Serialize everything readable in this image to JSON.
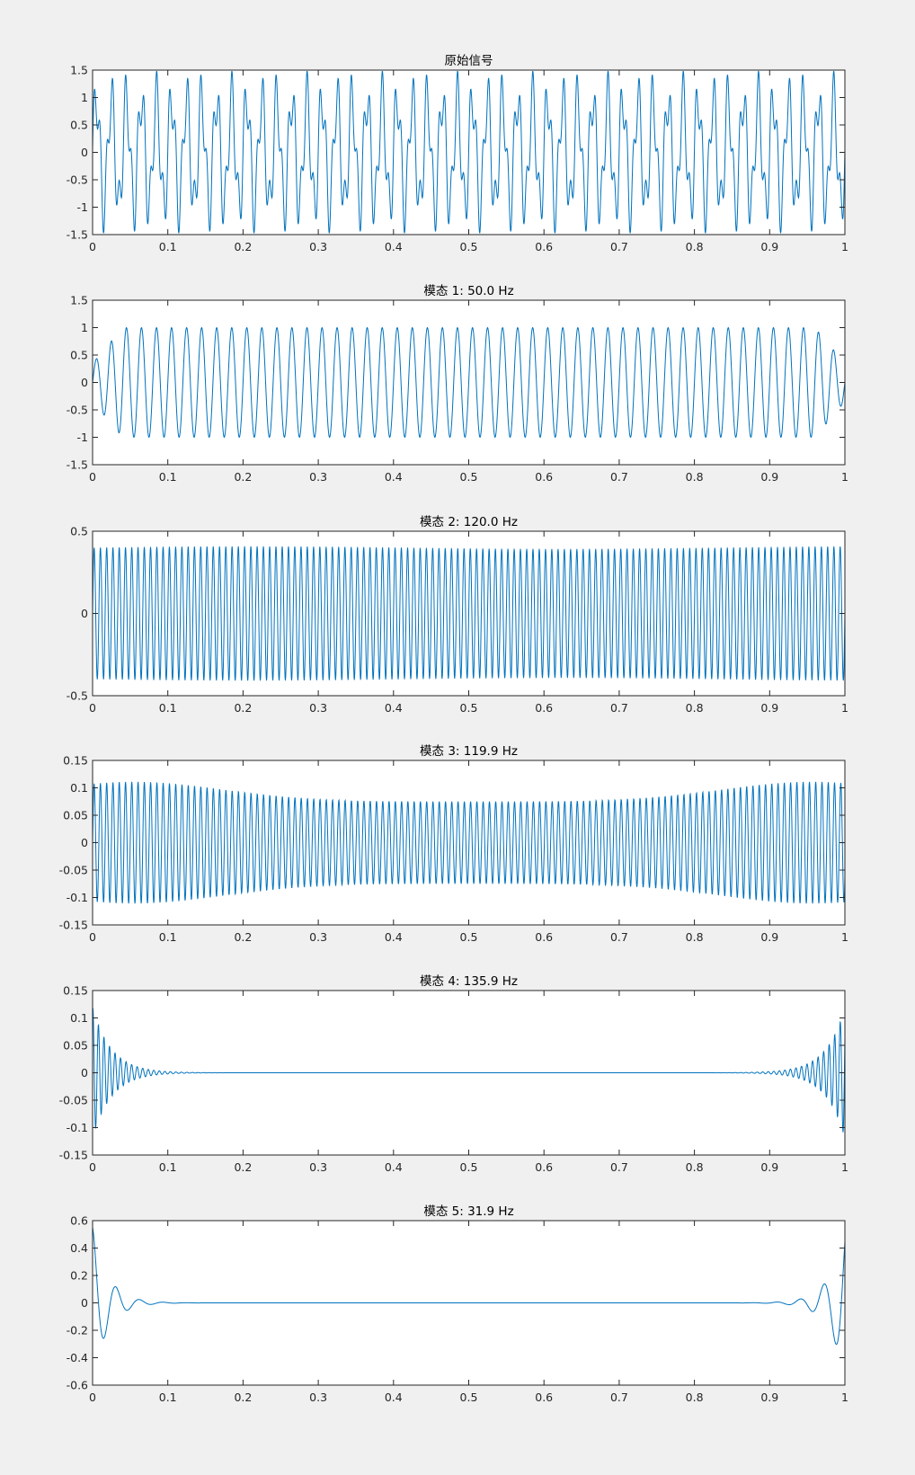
{
  "figure": {
    "background": "#f0f0f0",
    "line_color": "#0072bd"
  },
  "chart_data": [
    {
      "type": "line",
      "title": "原始信号",
      "xlim": [
        0,
        1
      ],
      "ylim": [
        -1.5,
        1.5
      ],
      "xticks": [
        0,
        0.1,
        0.2,
        0.3,
        0.4,
        0.5,
        0.6,
        0.7,
        0.8,
        0.9,
        1
      ],
      "xticklabels": [
        "0",
        "0.1",
        "0.2",
        "0.3",
        "0.4",
        "0.5",
        "0.6",
        "0.7",
        "0.8",
        "0.9",
        "1"
      ],
      "yticks": [
        -1.5,
        -1,
        -0.5,
        0,
        0.5,
        1,
        1.5
      ],
      "yticklabels": [
        "-1.5",
        "-1",
        "-0.5",
        "0",
        "0.5",
        "1",
        "1.5"
      ],
      "series": [
        {
          "components": [
            {
              "amp": 1.0,
              "freq": 50
            },
            {
              "amp": 0.4,
              "freq": 120
            },
            {
              "amp": 0.1,
              "freq": 120
            }
          ]
        }
      ]
    },
    {
      "type": "line",
      "title": "模态 1: 50.0 Hz",
      "xlim": [
        0,
        1
      ],
      "ylim": [
        -1.5,
        1.5
      ],
      "xticks": [
        0,
        0.1,
        0.2,
        0.3,
        0.4,
        0.5,
        0.6,
        0.7,
        0.8,
        0.9,
        1
      ],
      "xticklabels": [
        "0",
        "0.1",
        "0.2",
        "0.3",
        "0.4",
        "0.5",
        "0.6",
        "0.7",
        "0.8",
        "0.9",
        "1"
      ],
      "yticks": [
        -1.5,
        -1,
        -0.5,
        0,
        0.5,
        1,
        1.5
      ],
      "yticklabels": [
        "-1.5",
        "-1",
        "-0.5",
        "0",
        "0.5",
        "1",
        "1.5"
      ],
      "series": [
        {
          "freq": 50.0,
          "amplitude": 1.0
        }
      ]
    },
    {
      "type": "line",
      "title": "模态 2: 120.0 Hz",
      "xlim": [
        0,
        1
      ],
      "ylim": [
        -0.5,
        0.5
      ],
      "xticks": [
        0,
        0.1,
        0.2,
        0.3,
        0.4,
        0.5,
        0.6,
        0.7,
        0.8,
        0.9,
        1
      ],
      "xticklabels": [
        "0",
        "0.1",
        "0.2",
        "0.3",
        "0.4",
        "0.5",
        "0.6",
        "0.7",
        "0.8",
        "0.9",
        "1"
      ],
      "yticks": [
        -0.5,
        0,
        0.5
      ],
      "yticklabels": [
        "-0.5",
        "0",
        "0.5"
      ],
      "series": [
        {
          "freq": 120.0,
          "amplitude": 0.4
        }
      ]
    },
    {
      "type": "line",
      "title": "模态 3: 119.9 Hz",
      "xlim": [
        0,
        1
      ],
      "ylim": [
        -0.15,
        0.15
      ],
      "xticks": [
        0,
        0.1,
        0.2,
        0.3,
        0.4,
        0.5,
        0.6,
        0.7,
        0.8,
        0.9,
        1
      ],
      "xticklabels": [
        "0",
        "0.1",
        "0.2",
        "0.3",
        "0.4",
        "0.5",
        "0.6",
        "0.7",
        "0.8",
        "0.9",
        "1"
      ],
      "yticks": [
        -0.15,
        -0.1,
        -0.05,
        0,
        0.05,
        0.1,
        0.15
      ],
      "yticklabels": [
        "-0.15",
        "-0.1",
        "-0.05",
        "0",
        "0.05",
        "0.1",
        "0.15"
      ],
      "series": [
        {
          "freq": 119.9,
          "amplitude_edges": 0.11,
          "amplitude_center": 0.075
        }
      ]
    },
    {
      "type": "line",
      "title": "模态 4: 135.9 Hz",
      "xlim": [
        0,
        1
      ],
      "ylim": [
        -0.15,
        0.15
      ],
      "xticks": [
        0,
        0.1,
        0.2,
        0.3,
        0.4,
        0.5,
        0.6,
        0.7,
        0.8,
        0.9,
        1
      ],
      "xticklabels": [
        "0",
        "0.1",
        "0.2",
        "0.3",
        "0.4",
        "0.5",
        "0.6",
        "0.7",
        "0.8",
        "0.9",
        "1"
      ],
      "yticks": [
        -0.15,
        -0.1,
        -0.05,
        0,
        0.05,
        0.1,
        0.15
      ],
      "yticklabels": [
        "-0.15",
        "-0.1",
        "-0.05",
        "0",
        "0.05",
        "0.1",
        "0.15"
      ],
      "series": [
        {
          "freq": 135.9,
          "edge_amplitude": 0.12,
          "decay_length": 0.025
        }
      ]
    },
    {
      "type": "line",
      "title": "模态 5: 31.9 Hz",
      "xlim": [
        0,
        1
      ],
      "ylim": [
        -0.6,
        0.6
      ],
      "xticks": [
        0,
        0.1,
        0.2,
        0.3,
        0.4,
        0.5,
        0.6,
        0.7,
        0.8,
        0.9,
        1
      ],
      "xticklabels": [
        "0",
        "0.1",
        "0.2",
        "0.3",
        "0.4",
        "0.5",
        "0.6",
        "0.7",
        "0.8",
        "0.9",
        "1"
      ],
      "yticks": [
        -0.6,
        -0.4,
        -0.2,
        0,
        0.2,
        0.4,
        0.6
      ],
      "yticklabels": [
        "-0.6",
        "-0.4",
        "-0.2",
        "0",
        "0.2",
        "0.4",
        "0.6"
      ],
      "series": [
        {
          "freq": 31.9,
          "edge_amplitude": 0.55,
          "decay_length": 0.02
        }
      ]
    }
  ]
}
